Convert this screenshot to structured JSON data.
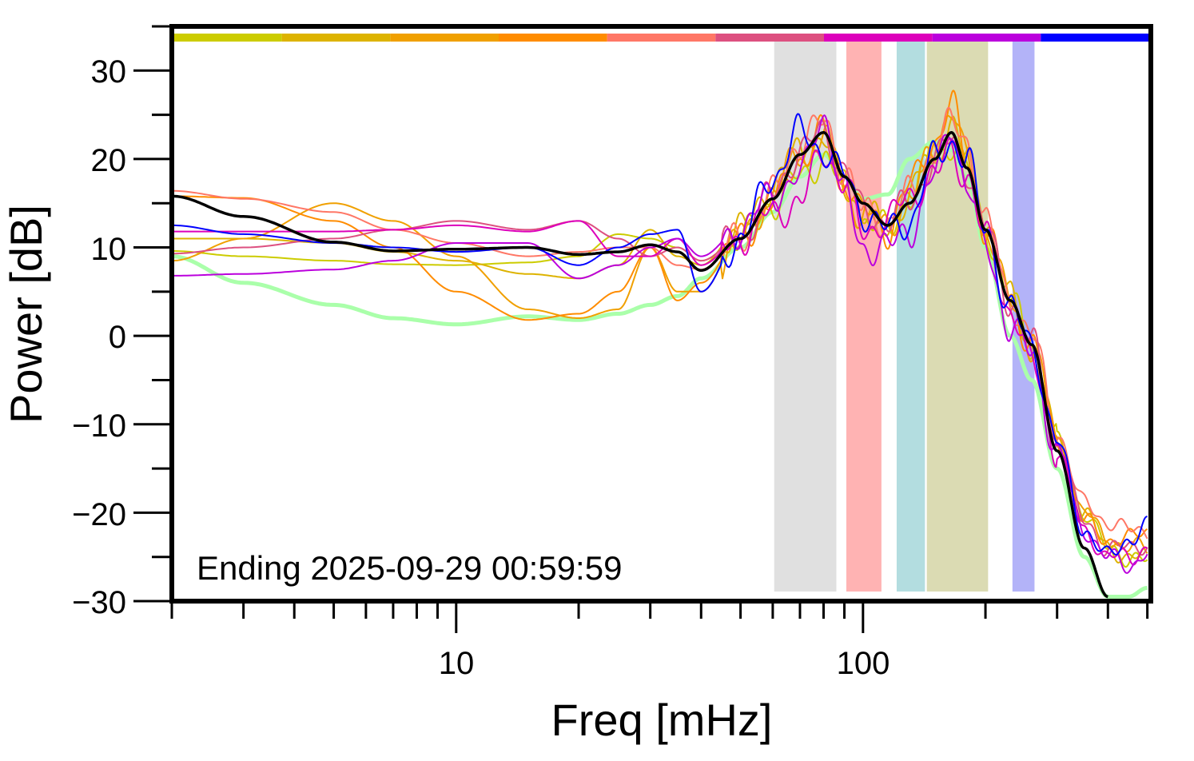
{
  "chart_data": {
    "type": "line",
    "xlabel": "Freq [mHz]",
    "ylabel": "Power [dB]",
    "xscale": "log",
    "xlim": [
      2,
      510
    ],
    "ylim": [
      -30,
      35
    ],
    "x_tick_labels": [
      "10",
      "100"
    ],
    "y_tick_labels": [
      "30",
      "20",
      "10",
      "0",
      "−10",
      "−20",
      "−30"
    ],
    "y_ticks": [
      30,
      20,
      10,
      0,
      -10,
      -20,
      -30
    ],
    "grid": false,
    "annotation": "Ending 2025-09-29 00:59:59",
    "color_bar": [
      "#cccc00",
      "#ddb300",
      "#f0a000",
      "#ff8c00",
      "#ff7766",
      "#dd5080",
      "#dd00bb",
      "#bb00dd",
      "#0000ff"
    ],
    "bands": [
      {
        "from": 60.5,
        "to": 86,
        "color": "#e0e0e0"
      },
      {
        "from": 91,
        "to": 111,
        "color": "#ffb3b3"
      },
      {
        "from": 121,
        "to": 142,
        "color": "#b3dde0"
      },
      {
        "from": 143.5,
        "to": 203,
        "color": "#dbdbb3"
      },
      {
        "from": 233,
        "to": 264,
        "color": "#b3b3f8"
      }
    ],
    "x": [
      2,
      3,
      5,
      7,
      10,
      15,
      20,
      25,
      30,
      35,
      40,
      50,
      60,
      70,
      80,
      90,
      100,
      115,
      130,
      150,
      165,
      180,
      200,
      230,
      260,
      300,
      350,
      400,
      450,
      500
    ],
    "series": [
      {
        "color": "#aaffaa",
        "width": 5,
        "values": [
          9,
          6,
          3.5,
          2,
          1.3,
          2.2,
          1.8,
          2.5,
          3.5,
          4.5,
          6.5,
          10,
          14,
          18,
          20.5,
          18,
          15.5,
          16,
          20,
          22,
          21,
          18,
          10,
          0,
          -5,
          -15,
          -25,
          -29.5,
          -29.5,
          -28.5
        ]
      },
      {
        "color": "#cccc00",
        "width": 2,
        "values": [
          9.6,
          9,
          8.5,
          8.1,
          8,
          8.3,
          9,
          11.5,
          11,
          10,
          8.5,
          11,
          15,
          18,
          20,
          17,
          13,
          12,
          16,
          20,
          22,
          19,
          12,
          4,
          -1,
          -12,
          -20,
          -24,
          -25,
          -25.5
        ]
      },
      {
        "color": "#ddb300",
        "width": 2,
        "values": [
          11,
          11,
          10.5,
          9.5,
          8.5,
          7,
          6.5,
          8,
          12,
          9,
          8,
          12,
          17,
          21,
          22,
          17,
          14,
          12,
          16,
          21,
          24,
          20,
          13,
          4,
          -1,
          -12,
          -20,
          -24,
          -25,
          -25
        ]
      },
      {
        "color": "#f0a000",
        "width": 2,
        "values": [
          8.5,
          11,
          15,
          13,
          9,
          3,
          2,
          3,
          10,
          5,
          5,
          11,
          16,
          21,
          22,
          17,
          13,
          13,
          15,
          22,
          25,
          20,
          12,
          4,
          -1,
          -12,
          -20,
          -23,
          -24,
          -24
        ]
      },
      {
        "color": "#ff8c00",
        "width": 2,
        "values": [
          15.8,
          15.6,
          13,
          10,
          5,
          1.8,
          2.5,
          5,
          10,
          4,
          6,
          11,
          15,
          20,
          23,
          18,
          14,
          12,
          17,
          22,
          26,
          20,
          12,
          4,
          -1,
          -12,
          -21,
          -23,
          -23,
          -22
        ]
      },
      {
        "color": "#ff7766",
        "width": 2,
        "values": [
          16.4,
          15.5,
          14,
          12,
          10.5,
          9,
          9.5,
          10,
          10,
          8,
          7.5,
          11,
          16,
          22,
          24,
          19,
          14,
          13,
          16,
          21,
          24,
          22,
          13,
          4,
          0,
          -11,
          -19,
          -21,
          -22,
          -22
        ]
      },
      {
        "color": "#dd5080",
        "width": 2,
        "values": [
          9.3,
          10,
          11,
          12,
          13,
          12,
          13,
          11,
          9,
          10,
          8.5,
          11,
          16,
          21,
          23,
          19,
          14,
          13,
          15,
          20,
          22,
          19,
          12,
          4,
          -1,
          -12,
          -21,
          -24,
          -24,
          -23.5
        ]
      },
      {
        "color": "#dd00bb",
        "width": 2,
        "values": [
          11.8,
          11.8,
          11.8,
          12,
          12.5,
          11.8,
          13,
          9,
          9,
          11,
          8,
          11,
          14,
          15,
          21,
          17,
          12,
          13,
          16,
          18,
          21,
          18,
          11,
          3,
          -3,
          -13,
          -22,
          -25,
          -25,
          -24
        ]
      },
      {
        "color": "#bb00dd",
        "width": 2,
        "values": [
          6.8,
          7,
          7.5,
          8.5,
          10.5,
          10.5,
          6.5,
          8,
          10,
          11,
          9,
          12,
          16,
          18,
          25,
          16,
          10,
          10,
          12,
          18,
          24,
          17,
          10,
          1,
          -2,
          -13,
          -22,
          -25,
          -26,
          -24.5
        ]
      },
      {
        "color": "#0000ff",
        "width": 2,
        "values": [
          12.5,
          11.5,
          10.5,
          10,
          9.5,
          10,
          8,
          10,
          11.5,
          12,
          5,
          11,
          18,
          23,
          21,
          18,
          14,
          12,
          13,
          20,
          22,
          20,
          12,
          3,
          -1,
          -12,
          -22,
          -25,
          -23,
          -21.5
        ]
      },
      {
        "color": "#000000",
        "width": 3.5,
        "values": [
          15.8,
          13.5,
          10.6,
          9.6,
          9.8,
          10,
          9.2,
          9.5,
          10.3,
          9.5,
          7.4,
          11,
          15.5,
          20.5,
          23,
          18,
          15,
          12.5,
          15,
          20,
          23,
          19,
          12,
          4,
          -1,
          -13,
          -24,
          -29.5,
          null,
          null
        ]
      }
    ]
  }
}
